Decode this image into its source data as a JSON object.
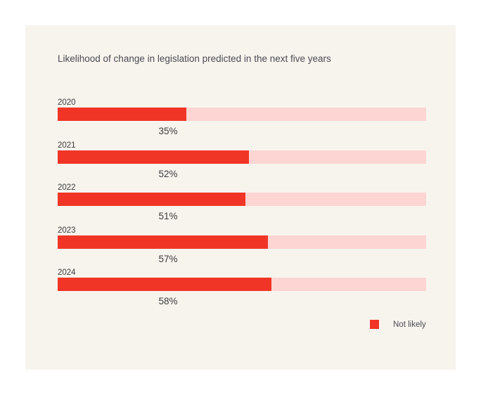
{
  "chart_data": {
    "type": "bar",
    "orientation": "horizontal",
    "title": "Likelihood of change in legislation predicted in the next five years",
    "categories": [
      "2020",
      "2021",
      "2022",
      "2023",
      "2024"
    ],
    "series": [
      {
        "name": "Not likely",
        "values": [
          35,
          52,
          51,
          57,
          58
        ]
      }
    ],
    "value_labels": [
      "35%",
      "52%",
      "51%",
      "57%",
      "58%"
    ],
    "xlim": [
      0,
      100
    ],
    "grid": false,
    "legend_position": "bottom-right",
    "colors": {
      "fill": "#f03526",
      "track": "#fdd5d2",
      "background": "#f7f4ee"
    }
  }
}
